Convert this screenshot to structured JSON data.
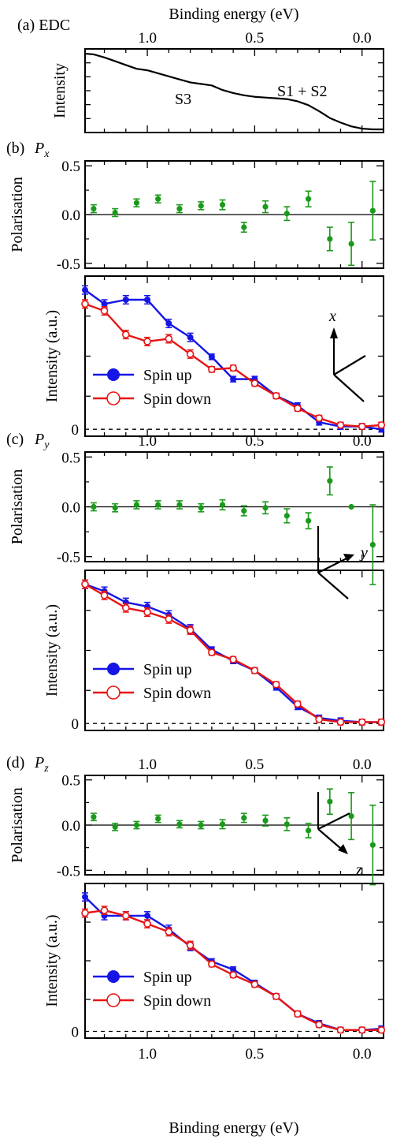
{
  "chart_data": {
    "type": "multi-panel spin-resolved EDC",
    "x_axis": {
      "label": "Binding energy (eV)",
      "tick_labels": [
        "1.0",
        "0.5",
        "0.0"
      ],
      "ticks": [
        1.0,
        0.5,
        0.0
      ],
      "range": [
        1.29,
        -0.1
      ],
      "reversed": true
    },
    "edc": {
      "panel_label": "(a) EDC",
      "ylabel": "Intensity",
      "annotations": [
        "S3",
        "S1 + S2"
      ],
      "x": [
        1.29,
        1.25,
        1.2,
        1.15,
        1.1,
        1.05,
        1.0,
        0.95,
        0.9,
        0.85,
        0.8,
        0.75,
        0.7,
        0.65,
        0.6,
        0.55,
        0.5,
        0.45,
        0.4,
        0.35,
        0.3,
        0.25,
        0.2,
        0.15,
        0.1,
        0.05,
        0.0,
        -0.05,
        -0.1
      ],
      "y": [
        1.0,
        0.99,
        0.95,
        0.9,
        0.85,
        0.8,
        0.78,
        0.74,
        0.7,
        0.66,
        0.62,
        0.6,
        0.58,
        0.52,
        0.48,
        0.45,
        0.43,
        0.42,
        0.41,
        0.4,
        0.37,
        0.32,
        0.24,
        0.15,
        0.09,
        0.04,
        0.01,
        0.0,
        0.0
      ]
    },
    "panels": [
      {
        "id": "px",
        "panel_label": "(b)",
        "component": "x",
        "polarisation": {
          "ylabel": "Polarisation",
          "y_tick_labels": [
            "0.5",
            "0.0",
            "-0.5"
          ],
          "ylim": [
            -0.55,
            0.55
          ],
          "color": "#1a9a1a",
          "x": [
            1.25,
            1.15,
            1.05,
            0.95,
            0.85,
            0.75,
            0.65,
            0.55,
            0.45,
            0.35,
            0.25,
            0.15,
            0.05,
            -0.05
          ],
          "y": [
            0.06,
            0.02,
            0.12,
            0.16,
            0.06,
            0.09,
            0.1,
            -0.13,
            0.08,
            0.01,
            0.16,
            -0.25,
            -0.3,
            0.04
          ],
          "err": [
            0.04,
            0.04,
            0.04,
            0.04,
            0.04,
            0.04,
            0.05,
            0.05,
            0.06,
            0.07,
            0.08,
            0.12,
            0.22,
            0.3
          ]
        },
        "intensity": {
          "ylabel": "Intensity (a.u.)",
          "zero_label": "0",
          "ylim": [
            -0.05,
            1.1
          ],
          "series": [
            {
              "name": "Spin up",
              "color": "#1515e6",
              "marker": "filled",
              "y": [
                1.0,
                0.9,
                0.93,
                0.93,
                0.76,
                0.66,
                0.52,
                0.36,
                0.36,
                0.24,
                0.17,
                0.05,
                0.02,
                0.02,
                0.0
              ],
              "err": [
                0.03,
                0.03,
                0.03,
                0.03,
                0.03,
                0.03,
                0.02,
                0.02,
                0.02,
                0.02,
                0.02,
                0.02,
                0.02,
                0.02,
                0.02
              ]
            },
            {
              "name": "Spin down",
              "color": "#e61515",
              "marker": "open",
              "y": [
                0.9,
                0.85,
                0.68,
                0.63,
                0.65,
                0.54,
                0.43,
                0.44,
                0.33,
                0.24,
                0.15,
                0.08,
                0.03,
                0.02,
                0.03
              ],
              "err": [
                0.03,
                0.03,
                0.03,
                0.03,
                0.03,
                0.03,
                0.02,
                0.02,
                0.02,
                0.02,
                0.02,
                0.02,
                0.02,
                0.02,
                0.02
              ]
            }
          ]
        },
        "axis_label": "x"
      },
      {
        "id": "py",
        "panel_label": "(c)",
        "component": "y",
        "polarisation": {
          "ylabel": "Polarisation",
          "y_tick_labels": [
            "0.5",
            "0.0",
            "-0.5"
          ],
          "ylim": [
            -0.55,
            0.55
          ],
          "color": "#1a9a1a",
          "x": [
            1.25,
            1.15,
            1.05,
            0.95,
            0.85,
            0.75,
            0.65,
            0.55,
            0.45,
            0.35,
            0.25,
            0.15,
            0.05,
            -0.05
          ],
          "y": [
            0.0,
            -0.01,
            0.02,
            0.02,
            0.02,
            -0.01,
            0.02,
            -0.04,
            -0.01,
            -0.09,
            -0.14,
            0.26,
            0.0,
            -0.38
          ],
          "err": [
            0.04,
            0.04,
            0.04,
            0.04,
            0.04,
            0.04,
            0.05,
            0.05,
            0.06,
            0.07,
            0.08,
            0.14,
            0.0,
            0.4
          ]
        },
        "intensity": {
          "ylabel": "Intensity (a.u.)",
          "zero_label": "0",
          "ylim": [
            -0.05,
            1.1
          ],
          "series": [
            {
              "name": "Spin up",
              "color": "#1515e6",
              "marker": "filled",
              "y": [
                1.0,
                0.95,
                0.87,
                0.84,
                0.78,
                0.68,
                0.53,
                0.45,
                0.38,
                0.26,
                0.12,
                0.04,
                0.02,
                0.01,
                0.01
              ],
              "err": [
                0.03,
                0.03,
                0.03,
                0.03,
                0.03,
                0.03,
                0.02,
                0.02,
                0.02,
                0.02,
                0.02,
                0.02,
                0.02,
                0.02,
                0.02
              ]
            },
            {
              "name": "Spin down",
              "color": "#e61515",
              "marker": "open",
              "y": [
                1.0,
                0.92,
                0.83,
                0.8,
                0.75,
                0.67,
                0.51,
                0.46,
                0.38,
                0.28,
                0.14,
                0.03,
                0.01,
                0.01,
                0.01
              ],
              "err": [
                0.03,
                0.03,
                0.03,
                0.03,
                0.03,
                0.03,
                0.02,
                0.02,
                0.02,
                0.02,
                0.02,
                0.02,
                0.02,
                0.02,
                0.02
              ]
            }
          ]
        },
        "axis_label": "y"
      },
      {
        "id": "pz",
        "panel_label": "(d)",
        "component": "z",
        "polarisation": {
          "ylabel": "Polarisation",
          "y_tick_labels": [
            "0.5",
            "0.0",
            "-0.5"
          ],
          "ylim": [
            -0.55,
            0.55
          ],
          "color": "#1a9a1a",
          "x": [
            1.25,
            1.15,
            1.05,
            0.95,
            0.85,
            0.75,
            0.65,
            0.55,
            0.45,
            0.35,
            0.25,
            0.15,
            0.05,
            -0.05
          ],
          "y": [
            0.09,
            -0.02,
            0.0,
            0.07,
            0.01,
            0.0,
            0.01,
            0.08,
            0.05,
            0.01,
            -0.06,
            0.26,
            0.1,
            -0.22
          ],
          "err": [
            0.04,
            0.04,
            0.04,
            0.04,
            0.04,
            0.04,
            0.05,
            0.05,
            0.06,
            0.07,
            0.08,
            0.14,
            0.26,
            0.44
          ]
        },
        "intensity": {
          "ylabel": "Intensity (a.u.)",
          "zero_label": "0",
          "ylim": [
            -0.05,
            1.1
          ],
          "series": [
            {
              "name": "Spin up",
              "color": "#1515e6",
              "marker": "filled",
              "y": [
                1.0,
                0.86,
                0.86,
                0.86,
                0.76,
                0.63,
                0.52,
                0.46,
                0.36,
                0.26,
                0.13,
                0.06,
                0.01,
                0.01,
                0.02
              ],
              "err": [
                0.03,
                0.03,
                0.03,
                0.03,
                0.03,
                0.03,
                0.02,
                0.02,
                0.02,
                0.02,
                0.02,
                0.02,
                0.02,
                0.02,
                0.02
              ]
            },
            {
              "name": "Spin down",
              "color": "#e61515",
              "marker": "open",
              "y": [
                0.88,
                0.9,
                0.86,
                0.8,
                0.74,
                0.64,
                0.5,
                0.42,
                0.35,
                0.26,
                0.13,
                0.05,
                0.01,
                0.01,
                0.01
              ],
              "err": [
                0.03,
                0.03,
                0.03,
                0.03,
                0.03,
                0.03,
                0.02,
                0.02,
                0.02,
                0.02,
                0.02,
                0.02,
                0.02,
                0.02,
                0.02
              ]
            }
          ]
        },
        "axis_label": "z"
      }
    ],
    "intensity_x": [
      1.29,
      1.2,
      1.1,
      1.0,
      0.9,
      0.8,
      0.7,
      0.6,
      0.5,
      0.4,
      0.3,
      0.2,
      0.1,
      0.0,
      -0.09
    ],
    "legend": {
      "placement": "lower-left",
      "entries": [
        "Spin up",
        "Spin down"
      ]
    },
    "grid": false
  }
}
